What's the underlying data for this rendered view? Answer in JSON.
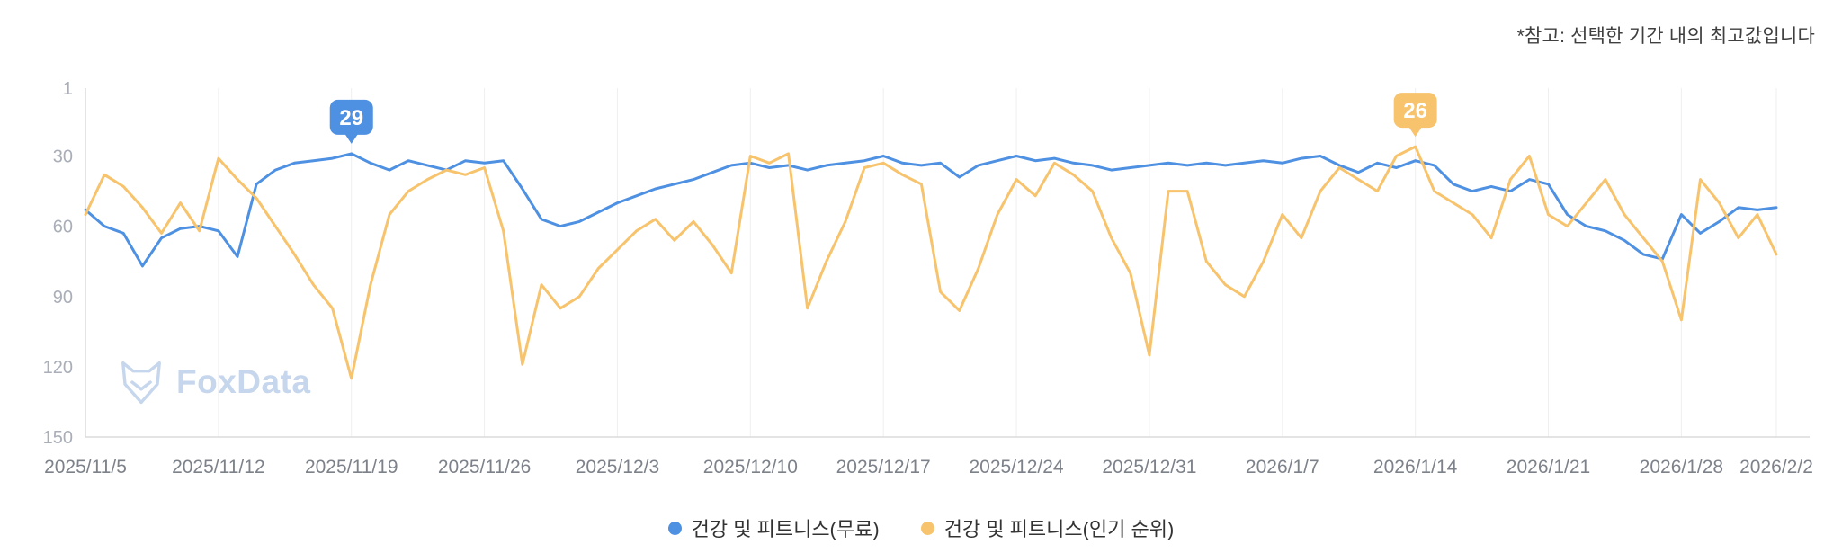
{
  "note": {
    "text": "*참고: 선택한 기간 내의 최고값입니다"
  },
  "watermark": {
    "text": "FoxData"
  },
  "legend": [
    {
      "label": "건강 및 피트니스(무료)",
      "color": "#4e90e2"
    },
    {
      "label": "건강 및 피트니스(인기 순위)",
      "color": "#f7c36c"
    }
  ],
  "chart_data": {
    "type": "line",
    "title": "",
    "xlabel": "",
    "ylabel": "",
    "y_inverted": true,
    "ylim": [
      1,
      150
    ],
    "y_ticks": [
      1,
      30,
      60,
      90,
      120,
      150
    ],
    "grid": "vertical-only",
    "grid_color": "#efefef",
    "axis_color": "#dcdcdc",
    "x_ticks": [
      {
        "label": "2025/11/5",
        "i": 0
      },
      {
        "label": "2025/11/12",
        "i": 7
      },
      {
        "label": "2025/11/19",
        "i": 14
      },
      {
        "label": "2025/11/26",
        "i": 21
      },
      {
        "label": "2025/12/3",
        "i": 28
      },
      {
        "label": "2025/12/10",
        "i": 35
      },
      {
        "label": "2025/12/17",
        "i": 42
      },
      {
        "label": "2025/12/24",
        "i": 49
      },
      {
        "label": "2025/12/31",
        "i": 56
      },
      {
        "label": "2026/1/7",
        "i": 63
      },
      {
        "label": "2026/1/14",
        "i": 70
      },
      {
        "label": "2026/1/21",
        "i": 77
      },
      {
        "label": "2026/1/28",
        "i": 84
      },
      {
        "label": "2026/2/2",
        "i": 89
      }
    ],
    "x": [
      "2025/11/5",
      "2025/11/6",
      "2025/11/7",
      "2025/11/8",
      "2025/11/9",
      "2025/11/10",
      "2025/11/11",
      "2025/11/12",
      "2025/11/13",
      "2025/11/14",
      "2025/11/15",
      "2025/11/16",
      "2025/11/17",
      "2025/11/18",
      "2025/11/19",
      "2025/11/20",
      "2025/11/21",
      "2025/11/22",
      "2025/11/23",
      "2025/11/24",
      "2025/11/25",
      "2025/11/26",
      "2025/11/27",
      "2025/11/28",
      "2025/11/29",
      "2025/11/30",
      "2025/12/1",
      "2025/12/2",
      "2025/12/3",
      "2025/12/4",
      "2025/12/5",
      "2025/12/6",
      "2025/12/7",
      "2025/12/8",
      "2025/12/9",
      "2025/12/10",
      "2025/12/11",
      "2025/12/12",
      "2025/12/13",
      "2025/12/14",
      "2025/12/15",
      "2025/12/16",
      "2025/12/17",
      "2025/12/18",
      "2025/12/19",
      "2025/12/20",
      "2025/12/21",
      "2025/12/22",
      "2025/12/23",
      "2025/12/24",
      "2025/12/25",
      "2025/12/26",
      "2025/12/27",
      "2025/12/28",
      "2025/12/29",
      "2025/12/30",
      "2025/12/31",
      "2026/1/1",
      "2026/1/2",
      "2026/1/3",
      "2026/1/4",
      "2026/1/5",
      "2026/1/6",
      "2026/1/7",
      "2026/1/8",
      "2026/1/9",
      "2026/1/10",
      "2026/1/11",
      "2026/1/12",
      "2026/1/13",
      "2026/1/14",
      "2026/1/15",
      "2026/1/16",
      "2026/1/17",
      "2026/1/18",
      "2026/1/19",
      "2026/1/20",
      "2026/1/21",
      "2026/1/22",
      "2026/1/23",
      "2026/1/24",
      "2026/1/25",
      "2026/1/26",
      "2026/1/27",
      "2026/1/28",
      "2026/1/29",
      "2026/1/30",
      "2026/1/31",
      "2026/2/1",
      "2026/2/2"
    ],
    "series": [
      {
        "name": "건강 및 피트니스(무료)",
        "color": "#4e90e2",
        "values": [
          53,
          60,
          63,
          77,
          65,
          61,
          60,
          62,
          73,
          42,
          36,
          33,
          32,
          31,
          29,
          33,
          36,
          32,
          34,
          36,
          32,
          33,
          32,
          44,
          57,
          60,
          58,
          54,
          50,
          47,
          44,
          42,
          40,
          37,
          34,
          33,
          35,
          34,
          36,
          34,
          33,
          32,
          30,
          33,
          34,
          33,
          39,
          34,
          32,
          30,
          32,
          31,
          33,
          34,
          36,
          35,
          34,
          33,
          34,
          33,
          34,
          33,
          32,
          33,
          31,
          30,
          34,
          37,
          33,
          35,
          32,
          34,
          42,
          45,
          43,
          45,
          40,
          42,
          55,
          60,
          62,
          66,
          72,
          74,
          55,
          63,
          58,
          52,
          53,
          52
        ]
      },
      {
        "name": "건강 및 피트니스(인기 순위)",
        "color": "#f7c36c",
        "values": [
          55,
          38,
          43,
          52,
          63,
          50,
          62,
          31,
          40,
          48,
          60,
          72,
          85,
          95,
          125,
          85,
          55,
          45,
          40,
          36,
          38,
          35,
          62,
          119,
          85,
          95,
          90,
          78,
          70,
          62,
          57,
          66,
          58,
          68,
          80,
          30,
          33,
          29,
          95,
          75,
          58,
          35,
          33,
          38,
          42,
          88,
          96,
          78,
          55,
          40,
          47,
          33,
          38,
          45,
          65,
          80,
          115,
          45,
          45,
          75,
          85,
          90,
          75,
          55,
          65,
          45,
          35,
          40,
          45,
          30,
          26,
          45,
          50,
          55,
          65,
          40,
          30,
          55,
          60,
          50,
          40,
          55,
          65,
          75,
          100,
          40,
          50,
          65,
          55,
          72
        ]
      }
    ],
    "annotations": [
      {
        "series_name": "free",
        "i": 14,
        "value": 29,
        "label": "29",
        "color": "#4e90e2"
      },
      {
        "series_name": "popularity",
        "i": 70,
        "value": 26,
        "label": "26",
        "color": "#f7c36c"
      }
    ]
  }
}
